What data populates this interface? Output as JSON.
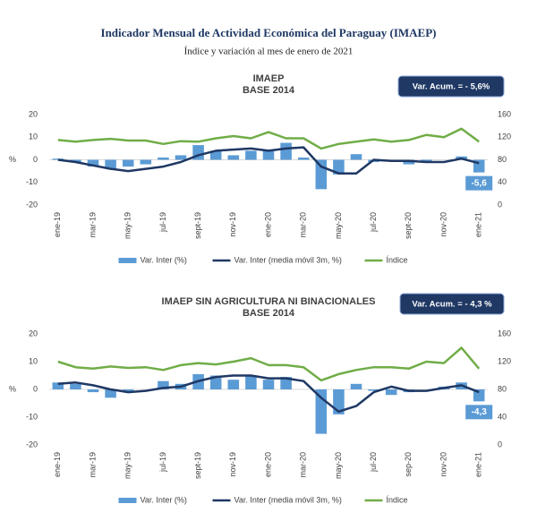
{
  "header": {
    "title": "Indicador Mensual de Actividad Económica del Paraguay (IMAEP)",
    "subtitle": "Índice y variación al mes de enero de 2021"
  },
  "chart_data": [
    {
      "type": "combo",
      "title": "IMAEP",
      "subtitle": "BASE 2014",
      "annotation": "Var. Acum. = - 5,6%",
      "y_label": "%",
      "categories": [
        "ene-19",
        null,
        "mar-19",
        null,
        "may-19",
        null,
        "jul-19",
        null,
        "sept-19",
        null,
        "nov-19",
        null,
        "ene-20",
        null,
        "mar-20",
        null,
        "may-20",
        null,
        "jul-20",
        null,
        "sept-20",
        null,
        "nov-20",
        null,
        "ene-21"
      ],
      "ylim": [
        -20,
        20
      ],
      "yticks": [
        -20,
        -10,
        0,
        10,
        20
      ],
      "y2lim": [
        0,
        160
      ],
      "y2ticks": [
        0,
        40,
        80,
        120,
        160
      ],
      "series": [
        {
          "name": "Var. Inter (%)",
          "type": "bar",
          "color": "#5b9bd5",
          "values": [
            0.5,
            -1,
            -3,
            -4,
            -3,
            -2,
            1,
            2,
            6.5,
            4,
            2,
            4,
            4.5,
            7.5,
            1,
            -13,
            -6.5,
            2.5,
            -1,
            0,
            -2,
            -1,
            0,
            1.5,
            -5.6
          ],
          "value_labels": [
            null,
            null,
            null,
            null,
            null,
            null,
            null,
            null,
            null,
            null,
            null,
            null,
            null,
            null,
            null,
            null,
            null,
            null,
            null,
            null,
            null,
            null,
            null,
            null,
            "-5,6"
          ]
        },
        {
          "name": "Var. Inter (media móvil 3m, %)",
          "type": "line",
          "color": "#1f3864",
          "values": [
            0,
            -1,
            -2.5,
            -4,
            -5,
            -4,
            -3,
            -1,
            2,
            4,
            4.5,
            5,
            4,
            5,
            5.5,
            -3,
            -6,
            -6,
            0,
            -0.5,
            -0.5,
            -1,
            -1,
            0.5,
            -1.5
          ]
        },
        {
          "name": "Índice",
          "type": "line",
          "color": "#70ad47",
          "axis": "y2",
          "values": [
            115,
            112,
            115,
            117,
            114,
            114,
            108,
            113,
            112,
            118,
            122,
            118,
            129,
            118,
            118,
            100,
            108,
            112,
            116,
            112,
            115,
            124,
            120,
            135,
            112
          ]
        }
      ]
    },
    {
      "type": "combo",
      "title": "IMAEP SIN AGRICULTURA NI BINACIONALES",
      "subtitle": "BASE 2014",
      "annotation": "Var. Acum. = - 4,3 %",
      "y_label": "%",
      "categories": [
        "ene-19",
        null,
        "mar-19",
        null,
        "may-19",
        null,
        "jul-19",
        null,
        "sept-19",
        null,
        "nov-19",
        null,
        "ene-20",
        null,
        "mar-20",
        null,
        "may-20",
        null,
        "jul-20",
        null,
        "sep-20",
        null,
        "nov-20",
        null,
        "ene-21"
      ],
      "ylim": [
        -20,
        20
      ],
      "yticks": [
        -20,
        -10,
        0,
        10,
        20
      ],
      "y2lim": [
        0,
        160
      ],
      "y2ticks": [
        0,
        40,
        80,
        120,
        160
      ],
      "series": [
        {
          "name": "Var. Inter (%)",
          "type": "bar",
          "color": "#5b9bd5",
          "values": [
            2.5,
            2,
            -1,
            -3,
            -1,
            0,
            3,
            2,
            5.5,
            5,
            3.5,
            5,
            3.5,
            4.5,
            0,
            -16,
            -9,
            2,
            -0.5,
            -2,
            -1,
            0,
            1,
            2.5,
            -4.3
          ],
          "value_labels": [
            null,
            null,
            null,
            null,
            null,
            null,
            null,
            null,
            null,
            null,
            null,
            null,
            null,
            null,
            null,
            null,
            null,
            null,
            null,
            null,
            null,
            null,
            null,
            null,
            "-4,3"
          ]
        },
        {
          "name": "Var. Inter (media móvil 3m, %)",
          "type": "line",
          "color": "#1f3864",
          "values": [
            2,
            2.5,
            1.5,
            0,
            -1,
            -0.5,
            0.5,
            1,
            3,
            4.5,
            5,
            5,
            4,
            4,
            3,
            -3,
            -8,
            -6,
            -1,
            1,
            -0.5,
            -0.5,
            0.5,
            1.5,
            -1
          ]
        },
        {
          "name": "Índice",
          "type": "line",
          "color": "#70ad47",
          "axis": "y2",
          "values": [
            120,
            112,
            110,
            113,
            111,
            112,
            108,
            115,
            118,
            116,
            120,
            125,
            115,
            115,
            112,
            93,
            102,
            108,
            112,
            112,
            110,
            120,
            118,
            140,
            110
          ]
        }
      ]
    }
  ]
}
